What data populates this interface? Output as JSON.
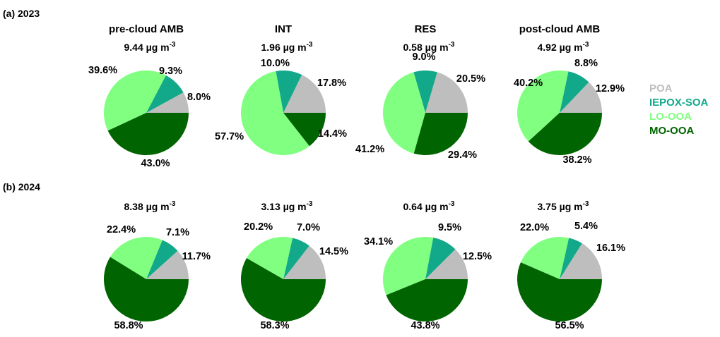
{
  "colors": {
    "POA": "#bebebe",
    "IEPOX-SOA": "#12a98a",
    "LO-OOA": "#80ff80",
    "MO-OOA": "#006400"
  },
  "legend": [
    "POA",
    "IEPOX-SOA",
    "LO-OOA",
    "MO-OOA"
  ],
  "chart_data": [
    {
      "type": "pie",
      "panel": "(a) 2023",
      "title": "pre-cloud AMB",
      "total": "9.44 µg m",
      "total_exp": "-3",
      "slices": [
        {
          "name": "POA",
          "value": 8.0,
          "label": "8.0%"
        },
        {
          "name": "IEPOX-SOA",
          "value": 9.3,
          "label": "9.3%"
        },
        {
          "name": "LO-OOA",
          "value": 39.6,
          "label": "39.6%"
        },
        {
          "name": "MO-OOA",
          "value": 43.0,
          "label": "43.0%"
        }
      ]
    },
    {
      "type": "pie",
      "panel": "(a) 2023",
      "title": "INT",
      "total": "1.96 µg m",
      "total_exp": "-3",
      "slices": [
        {
          "name": "POA",
          "value": 17.8,
          "label": "17.8%"
        },
        {
          "name": "IEPOX-SOA",
          "value": 10.0,
          "label": "10.0%"
        },
        {
          "name": "LO-OOA",
          "value": 57.7,
          "label": "57.7%"
        },
        {
          "name": "MO-OOA",
          "value": 14.4,
          "label": "14.4%"
        }
      ]
    },
    {
      "type": "pie",
      "panel": "(a) 2023",
      "title": "RES",
      "total": "0.58 µg m",
      "total_exp": "-3",
      "slices": [
        {
          "name": "POA",
          "value": 20.5,
          "label": "20.5%"
        },
        {
          "name": "IEPOX-SOA",
          "value": 9.0,
          "label": "9.0%"
        },
        {
          "name": "LO-OOA",
          "value": 41.2,
          "label": "41.2%"
        },
        {
          "name": "MO-OOA",
          "value": 29.4,
          "label": "29.4%"
        }
      ]
    },
    {
      "type": "pie",
      "panel": "(a) 2023",
      "title": "post-cloud AMB",
      "total": "4.92 µg m",
      "total_exp": "-3",
      "slices": [
        {
          "name": "POA",
          "value": 12.9,
          "label": "12.9%"
        },
        {
          "name": "IEPOX-SOA",
          "value": 8.8,
          "label": "8.8%"
        },
        {
          "name": "LO-OOA",
          "value": 40.2,
          "label": "40.2%"
        },
        {
          "name": "MO-OOA",
          "value": 38.2,
          "label": "38.2%"
        }
      ]
    },
    {
      "type": "pie",
      "panel": "(b) 2024",
      "title": "",
      "total": "8.38 µg m",
      "total_exp": "-3",
      "slices": [
        {
          "name": "POA",
          "value": 11.7,
          "label": "11.7%"
        },
        {
          "name": "IEPOX-SOA",
          "value": 7.1,
          "label": "7.1%"
        },
        {
          "name": "LO-OOA",
          "value": 22.4,
          "label": "22.4%"
        },
        {
          "name": "MO-OOA",
          "value": 58.8,
          "label": "58.8%"
        }
      ]
    },
    {
      "type": "pie",
      "panel": "(b) 2024",
      "title": "",
      "total": "3.13 µg m",
      "total_exp": "-3",
      "slices": [
        {
          "name": "POA",
          "value": 14.5,
          "label": "14.5%"
        },
        {
          "name": "IEPOX-SOA",
          "value": 7.0,
          "label": "7.0%"
        },
        {
          "name": "LO-OOA",
          "value": 20.2,
          "label": "20.2%"
        },
        {
          "name": "MO-OOA",
          "value": 58.3,
          "label": "58.3%"
        }
      ]
    },
    {
      "type": "pie",
      "panel": "(b) 2024",
      "title": "",
      "total": "0.64 µg m",
      "total_exp": "-3",
      "slices": [
        {
          "name": "POA",
          "value": 12.5,
          "label": "12.5%"
        },
        {
          "name": "IEPOX-SOA",
          "value": 9.5,
          "label": "9.5%"
        },
        {
          "name": "LO-OOA",
          "value": 34.1,
          "label": "34.1%"
        },
        {
          "name": "MO-OOA",
          "value": 43.8,
          "label": "43.8%"
        }
      ]
    },
    {
      "type": "pie",
      "panel": "(b) 2024",
      "title": "",
      "total": "3.75 µg m",
      "total_exp": "-3",
      "slices": [
        {
          "name": "POA",
          "value": 16.1,
          "label": "16.1%"
        },
        {
          "name": "IEPOX-SOA",
          "value": 5.4,
          "label": "5.4%"
        },
        {
          "name": "LO-OOA",
          "value": 22.0,
          "label": "22.0%"
        },
        {
          "name": "MO-OOA",
          "value": 56.5,
          "label": "56.5%"
        }
      ]
    }
  ],
  "panels": [
    "(a) 2023",
    "(b) 2024"
  ]
}
